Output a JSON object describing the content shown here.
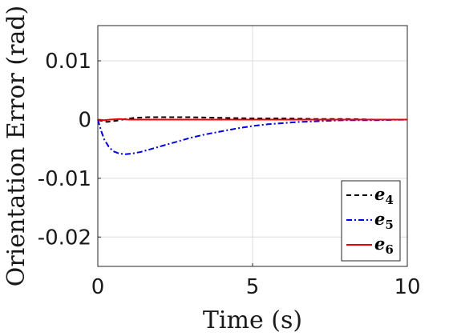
{
  "chart_data": {
    "type": "line",
    "title": "",
    "xlabel": "Time (s)",
    "ylabel": "Orientation Error (rad)",
    "xlim": [
      0,
      10
    ],
    "ylim": [
      -0.025,
      0.016
    ],
    "x_ticks": [
      0,
      5,
      10
    ],
    "x_tick_labels": [
      "0",
      "5",
      "10"
    ],
    "y_ticks": [
      -0.02,
      -0.01,
      0,
      0.01
    ],
    "y_tick_labels": [
      "-0.02",
      "-0.01",
      "0",
      "0.01"
    ],
    "grid": true,
    "legend_position": "bottom-right",
    "series": [
      {
        "name": "e",
        "subscript": "4",
        "color": "#000000",
        "dash": "dashed",
        "x": [
          0,
          0.1,
          0.3,
          0.6,
          0.9,
          1.2,
          1.6,
          2.0,
          2.5,
          3.0,
          4.0,
          5.0,
          6.0,
          7.0,
          8.0,
          9.0,
          10.0
        ],
        "y": [
          0,
          -0.0002,
          -0.0004,
          -0.0002,
          0.0001,
          0.0003,
          0.0004,
          0.0004,
          0.0004,
          0.0004,
          0.0003,
          0.0002,
          0.0002,
          0.0001,
          0.0001,
          0.0,
          0.0
        ]
      },
      {
        "name": "e",
        "subscript": "5",
        "color": "#0000dd",
        "dash": "dashdot",
        "x": [
          0,
          0.1,
          0.2,
          0.35,
          0.5,
          0.7,
          0.9,
          1.1,
          1.4,
          1.8,
          2.2,
          2.6,
          3.0,
          3.5,
          4.0,
          4.5,
          5.0,
          5.5,
          6.0,
          6.5,
          7.0,
          7.5,
          8.0,
          9.0,
          10.0
        ],
        "y": [
          0,
          -0.0018,
          -0.0033,
          -0.0046,
          -0.0054,
          -0.0058,
          -0.0059,
          -0.0058,
          -0.0055,
          -0.0049,
          -0.0043,
          -0.0037,
          -0.0031,
          -0.0025,
          -0.002,
          -0.0015,
          -0.0011,
          -0.0008,
          -0.0006,
          -0.0004,
          -0.0003,
          -0.0002,
          -0.0001,
          -0.0001,
          0.0
        ]
      },
      {
        "name": "e",
        "subscript": "6",
        "color": "#ee0000",
        "dash": "solid",
        "x": [
          0,
          0.2,
          0.4,
          0.7,
          1.0,
          1.5,
          2.0,
          3.0,
          5.0,
          7.0,
          10.0
        ],
        "y": [
          0,
          -0.0001,
          0.0,
          0.0001,
          0.0,
          0.0,
          0.0,
          0.0,
          0.0,
          0.0,
          0.0
        ]
      }
    ]
  }
}
